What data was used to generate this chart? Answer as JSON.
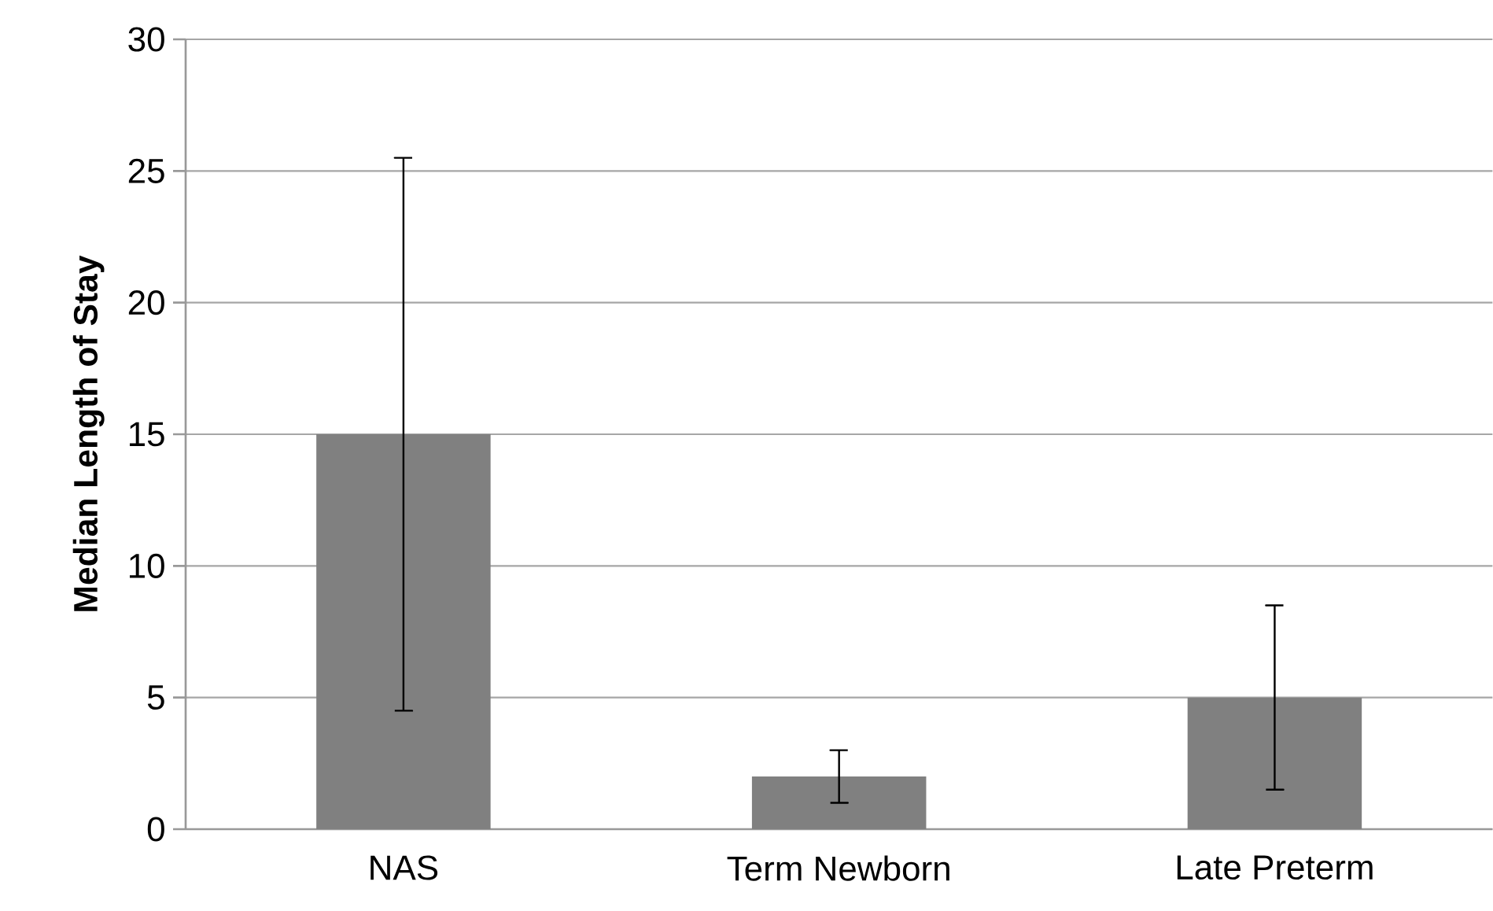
{
  "chart_data": {
    "type": "bar",
    "ylabel": "Median Length of Stay",
    "categories": [
      "NAS",
      "Term Newborn",
      "Late Preterm"
    ],
    "values": [
      15,
      2,
      5
    ],
    "errors": [
      [
        4.5,
        25.5
      ],
      [
        1,
        3
      ],
      [
        1.5,
        8.5
      ]
    ],
    "color": "#808080",
    "ylim": [
      0,
      30
    ],
    "yticks": [
      0,
      5,
      10,
      15,
      20,
      25,
      30
    ],
    "grid": "y"
  }
}
